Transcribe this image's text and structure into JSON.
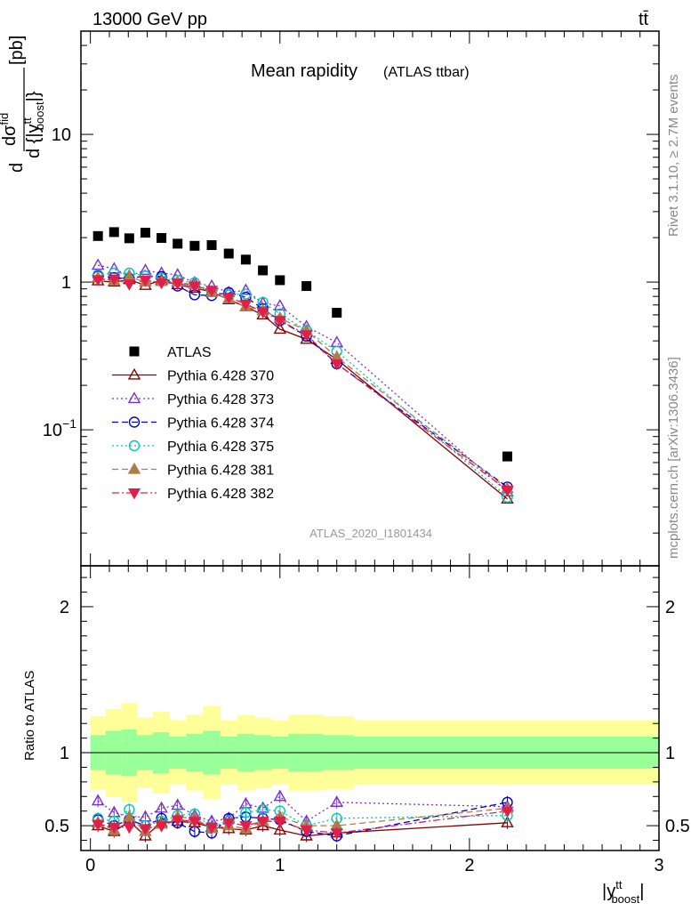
{
  "header": {
    "energy": "13000 GeV pp",
    "process": "tt̄",
    "title": "Mean rapidity",
    "subtitle": "(ATLAS ttbar)",
    "watermark": "ATLAS_2020_I1801434",
    "side_rivet": "Rivet 3.1.10, ≥ 2.7M events",
    "side_mcplots": "mcplots.cern.ch [arXiv:1306.3436]"
  },
  "chart_data": [
    {
      "type": "scatter",
      "name": "main",
      "yscale": "log",
      "xlim": [
        -0.05,
        3.0
      ],
      "ylim": [
        0.012,
        50
      ],
      "ylabel_parts": {
        "d": "d",
        "num": "dσ",
        "num_sup": "fid",
        "den": "d {|y",
        "den_sup": "tt",
        "den_sub": "boost",
        "den_end": "|}",
        "unit": "[pb]"
      },
      "yticks": [
        {
          "v": 0.1,
          "base": "10",
          "exp": "−1"
        },
        {
          "v": 1,
          "base": "1",
          "exp": ""
        },
        {
          "v": 10,
          "base": "10",
          "exp": ""
        }
      ],
      "legend_position": "left-middle",
      "series": [
        {
          "name": "ATLAS",
          "color": "#000000",
          "marker": "square",
          "line": "none",
          "x": [
            0.04,
            0.125,
            0.205,
            0.29,
            0.375,
            0.46,
            0.55,
            0.64,
            0.73,
            0.82,
            0.91,
            1.0,
            1.14,
            1.3,
            2.2
          ],
          "y": [
            2.05,
            2.18,
            1.98,
            2.16,
            1.99,
            1.82,
            1.76,
            1.78,
            1.56,
            1.42,
            1.2,
            1.03,
            0.94,
            0.62,
            0.066
          ]
        },
        {
          "name": "Pythia 6.428 370",
          "color": "#8b0000",
          "marker": "triangle-open",
          "line": "solid",
          "x": [
            0.04,
            0.125,
            0.205,
            0.29,
            0.375,
            0.46,
            0.55,
            0.64,
            0.73,
            0.82,
            0.91,
            1.0,
            1.14,
            1.3,
            2.2
          ],
          "y": [
            1.02,
            1.0,
            1.04,
            0.95,
            1.03,
            0.96,
            0.91,
            0.86,
            0.76,
            0.68,
            0.6,
            0.48,
            0.41,
            0.3,
            0.034
          ]
        },
        {
          "name": "Pythia 6.428 373",
          "color": "#7b2fd0",
          "marker": "triangle-open",
          "line": "dotted",
          "x": [
            0.04,
            0.125,
            0.205,
            0.29,
            0.375,
            0.46,
            0.55,
            0.64,
            0.73,
            0.82,
            0.91,
            1.0,
            1.14,
            1.3,
            2.2
          ],
          "y": [
            1.3,
            1.23,
            1.1,
            1.2,
            1.15,
            1.12,
            0.99,
            0.94,
            0.85,
            0.88,
            0.72,
            0.69,
            0.5,
            0.39,
            0.038
          ]
        },
        {
          "name": "Pythia 6.428 374",
          "color": "#0000cc",
          "marker": "circle-open",
          "line": "dashed",
          "x": [
            0.04,
            0.125,
            0.205,
            0.29,
            0.375,
            0.46,
            0.55,
            0.64,
            0.73,
            0.82,
            0.91,
            1.0,
            1.14,
            1.3,
            2.2
          ],
          "y": [
            1.1,
            1.07,
            1.06,
            1.1,
            1.09,
            0.94,
            0.82,
            0.81,
            0.85,
            0.79,
            0.66,
            0.55,
            0.43,
            0.28,
            0.041
          ]
        },
        {
          "name": "Pythia 6.428 375",
          "color": "#00c8b4",
          "marker": "circle-open",
          "line": "dotted",
          "x": [
            0.04,
            0.125,
            0.205,
            0.29,
            0.375,
            0.46,
            0.55,
            0.64,
            0.73,
            0.82,
            0.91,
            1.0,
            1.14,
            1.3,
            2.2
          ],
          "y": [
            1.12,
            1.15,
            1.15,
            1.1,
            1.06,
            1.03,
            0.99,
            0.86,
            0.82,
            0.83,
            0.73,
            0.61,
            0.47,
            0.34,
            0.035
          ]
        },
        {
          "name": "Pythia 6.428 381",
          "color": "#b07a4a",
          "marker": "triangle-filled",
          "line": "dashed",
          "x": [
            0.04,
            0.125,
            0.205,
            0.29,
            0.375,
            0.46,
            0.55,
            0.64,
            0.73,
            0.82,
            0.91,
            1.0,
            1.14,
            1.3,
            2.2
          ],
          "y": [
            1.07,
            1.02,
            1.09,
            1.0,
            1.01,
            1.0,
            0.96,
            0.85,
            0.77,
            0.68,
            0.64,
            0.57,
            0.47,
            0.31,
            0.04
          ]
        },
        {
          "name": "Pythia 6.428 382",
          "color": "#e0204a",
          "marker": "triangle-down-filled",
          "line": "dashdot",
          "x": [
            0.04,
            0.125,
            0.205,
            0.29,
            0.375,
            0.46,
            0.55,
            0.64,
            0.73,
            0.82,
            0.91,
            1.0,
            1.14,
            1.3,
            2.2
          ],
          "y": [
            1.04,
            1.05,
            0.97,
            1.03,
            0.99,
            0.98,
            0.94,
            0.88,
            0.79,
            0.71,
            0.63,
            0.55,
            0.44,
            0.28,
            0.039
          ]
        }
      ]
    },
    {
      "type": "scatter",
      "name": "ratio",
      "ylabel": "Ratio to ATLAS",
      "xlabel_parts": {
        "pre": "|y",
        "sup": "tt",
        "sub": "boost",
        "post": "|"
      },
      "xlim": [
        -0.05,
        3.0
      ],
      "ylim": [
        0.33,
        2.28
      ],
      "xticks": [
        0,
        1,
        2,
        3
      ],
      "yticks": [
        0.5,
        1,
        2
      ],
      "ytick_labels": [
        "0.5",
        "1",
        "2"
      ],
      "bands": {
        "edges": [
          0.0,
          0.08,
          0.165,
          0.245,
          0.33,
          0.415,
          0.505,
          0.595,
          0.685,
          0.775,
          0.865,
          0.955,
          1.045,
          1.23,
          1.39,
          3.0
        ],
        "outer_color": "#ffff99",
        "inner_color": "#99ff99",
        "outer_lo": [
          0.75,
          0.7,
          0.66,
          0.76,
          0.72,
          0.78,
          0.74,
          0.68,
          0.78,
          0.74,
          0.76,
          0.78,
          0.74,
          0.75,
          0.78
        ],
        "outer_hi": [
          1.25,
          1.3,
          1.34,
          1.24,
          1.28,
          1.22,
          1.26,
          1.32,
          1.22,
          1.26,
          1.24,
          1.22,
          1.26,
          1.25,
          1.22
        ],
        "inner_lo": [
          0.88,
          0.85,
          0.84,
          0.88,
          0.86,
          0.89,
          0.87,
          0.85,
          0.89,
          0.87,
          0.88,
          0.89,
          0.87,
          0.88,
          0.89
        ],
        "inner_hi": [
          1.12,
          1.15,
          1.16,
          1.12,
          1.14,
          1.11,
          1.13,
          1.15,
          1.11,
          1.13,
          1.12,
          1.11,
          1.13,
          1.12,
          1.11
        ]
      },
      "series": [
        {
          "name": "Pythia 6.428 370",
          "y": [
            0.5,
            0.46,
            0.53,
            0.43,
            0.52,
            0.53,
            0.52,
            0.49,
            0.48,
            0.47,
            0.5,
            0.47,
            0.43,
            0.45,
            0.52
          ]
        },
        {
          "name": "Pythia 6.428 373",
          "y": [
            0.67,
            0.59,
            0.56,
            0.56,
            0.62,
            0.64,
            0.57,
            0.53,
            0.55,
            0.65,
            0.62,
            0.7,
            0.53,
            0.66,
            0.63
          ]
        },
        {
          "name": "Pythia 6.428 374",
          "y": [
            0.54,
            0.5,
            0.54,
            0.5,
            0.55,
            0.52,
            0.46,
            0.45,
            0.55,
            0.56,
            0.55,
            0.54,
            0.46,
            0.43,
            0.66
          ]
        },
        {
          "name": "Pythia 6.428 375",
          "y": [
            0.55,
            0.53,
            0.61,
            0.5,
            0.53,
            0.57,
            0.58,
            0.49,
            0.53,
            0.59,
            0.61,
            0.6,
            0.5,
            0.55,
            0.57
          ]
        },
        {
          "name": "Pythia 6.428 381",
          "y": [
            0.52,
            0.47,
            0.56,
            0.46,
            0.51,
            0.56,
            0.55,
            0.48,
            0.5,
            0.48,
            0.53,
            0.56,
            0.5,
            0.5,
            0.62
          ]
        },
        {
          "name": "Pythia 6.428 382",
          "y": [
            0.51,
            0.49,
            0.49,
            0.48,
            0.5,
            0.54,
            0.53,
            0.49,
            0.52,
            0.5,
            0.53,
            0.53,
            0.47,
            0.45,
            0.6
          ]
        }
      ]
    }
  ]
}
